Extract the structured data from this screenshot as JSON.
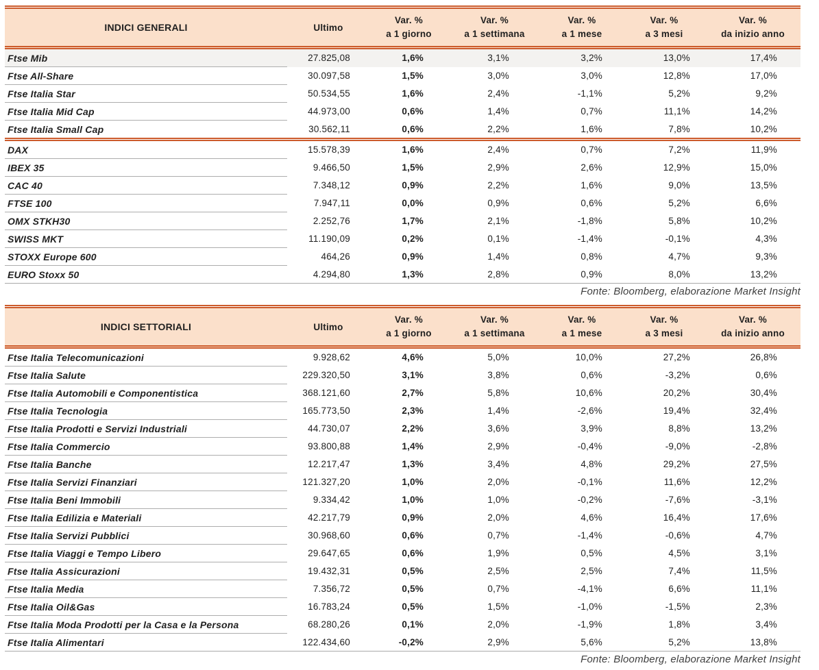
{
  "colors": {
    "header_bg": "#fbe0cb",
    "rule": "#cc5b2b",
    "row_line": "#adadad",
    "text": "#1f1f1f",
    "highlight": "#f3f2f0"
  },
  "tables": [
    {
      "headers": [
        {
          "label": "INDICI GENERALI"
        },
        {
          "label": "Ultimo"
        },
        {
          "line1": "Var. %",
          "line2": "a 1 giorno"
        },
        {
          "line1": "Var. %",
          "line2": "a 1 settimana"
        },
        {
          "line1": "Var. %",
          "line2": "a 1 mese"
        },
        {
          "line1": "Var. %",
          "line2": "a 3 mesi"
        },
        {
          "line1": "Var. %",
          "line2": "da inizio anno"
        }
      ],
      "rows": [
        {
          "name": "Ftse Mib",
          "ultimo": "27.825,08",
          "d1": "1,6%",
          "w1": "3,1%",
          "m1": "3,2%",
          "m3": "13,0%",
          "ytd": "17,4%",
          "highlight": true
        },
        {
          "name": "Ftse All-Share",
          "ultimo": "30.097,58",
          "d1": "1,5%",
          "w1": "3,0%",
          "m1": "3,0%",
          "m3": "12,8%",
          "ytd": "17,0%"
        },
        {
          "name": "Ftse Italia Star",
          "ultimo": "50.534,55",
          "d1": "1,6%",
          "w1": "2,4%",
          "m1": "-1,1%",
          "m3": "5,2%",
          "ytd": "9,2%"
        },
        {
          "name": "Ftse Italia Mid Cap",
          "ultimo": "44.973,00",
          "d1": "0,6%",
          "w1": "1,4%",
          "m1": "0,7%",
          "m3": "11,1%",
          "ytd": "14,2%"
        },
        {
          "name": "Ftse Italia Small Cap",
          "ultimo": "30.562,11",
          "d1": "0,6%",
          "w1": "2,2%",
          "m1": "1,6%",
          "m3": "7,8%",
          "ytd": "10,2%",
          "divider_after": true
        },
        {
          "name": "DAX",
          "ultimo": "15.578,39",
          "d1": "1,6%",
          "w1": "2,4%",
          "m1": "0,7%",
          "m3": "7,2%",
          "ytd": "11,9%"
        },
        {
          "name": "IBEX 35",
          "ultimo": "9.466,50",
          "d1": "1,5%",
          "w1": "2,9%",
          "m1": "2,6%",
          "m3": "12,9%",
          "ytd": "15,0%"
        },
        {
          "name": "CAC 40",
          "ultimo": "7.348,12",
          "d1": "0,9%",
          "w1": "2,2%",
          "m1": "1,6%",
          "m3": "9,0%",
          "ytd": "13,5%"
        },
        {
          "name": "FTSE 100",
          "ultimo": "7.947,11",
          "d1": "0,0%",
          "w1": "0,9%",
          "m1": "0,6%",
          "m3": "5,2%",
          "ytd": "6,6%"
        },
        {
          "name": "OMX STKH30",
          "ultimo": "2.252,76",
          "d1": "1,7%",
          "w1": "2,1%",
          "m1": "-1,8%",
          "m3": "5,8%",
          "ytd": "10,2%"
        },
        {
          "name": "SWISS MKT",
          "ultimo": "11.190,09",
          "d1": "0,2%",
          "w1": "0,1%",
          "m1": "-1,4%",
          "m3": "-0,1%",
          "ytd": "4,3%"
        },
        {
          "name": "STOXX Europe 600",
          "ultimo": "464,26",
          "d1": "0,9%",
          "w1": "1,4%",
          "m1": "0,8%",
          "m3": "4,7%",
          "ytd": "9,3%"
        },
        {
          "name": "EURO Stoxx 50",
          "ultimo": "4.294,80",
          "d1": "1,3%",
          "w1": "2,8%",
          "m1": "0,9%",
          "m3": "8,0%",
          "ytd": "13,2%"
        }
      ],
      "source_note": "Fonte: Bloomberg, elaborazione Market Insight"
    },
    {
      "headers": [
        {
          "label": "INDICI SETTORIALI"
        },
        {
          "label": "Ultimo"
        },
        {
          "line1": "Var. %",
          "line2": "a 1 giorno"
        },
        {
          "line1": "Var. %",
          "line2": "a 1 settimana"
        },
        {
          "line1": "Var. %",
          "line2": "a 1 mese"
        },
        {
          "line1": "Var. %",
          "line2": "a 3 mesi"
        },
        {
          "line1": "Var. %",
          "line2": "da inizio anno"
        }
      ],
      "rows": [
        {
          "name": "Ftse Italia Telecomunicazioni",
          "ultimo": "9.928,62",
          "d1": "4,6%",
          "w1": "5,0%",
          "m1": "10,0%",
          "m3": "27,2%",
          "ytd": "26,8%"
        },
        {
          "name": "Ftse Italia Salute",
          "ultimo": "229.320,50",
          "d1": "3,1%",
          "w1": "3,8%",
          "m1": "0,6%",
          "m3": "-3,2%",
          "ytd": "0,6%"
        },
        {
          "name": "Ftse Italia Automobili e Componentistica",
          "ultimo": "368.121,60",
          "d1": "2,7%",
          "w1": "5,8%",
          "m1": "10,6%",
          "m3": "20,2%",
          "ytd": "30,4%"
        },
        {
          "name": "Ftse Italia Tecnologia",
          "ultimo": "165.773,50",
          "d1": "2,3%",
          "w1": "1,4%",
          "m1": "-2,6%",
          "m3": "19,4%",
          "ytd": "32,4%"
        },
        {
          "name": "Ftse Italia Prodotti e Servizi Industriali",
          "ultimo": "44.730,07",
          "d1": "2,2%",
          "w1": "3,6%",
          "m1": "3,9%",
          "m3": "8,8%",
          "ytd": "13,2%"
        },
        {
          "name": "Ftse Italia Commercio",
          "ultimo": "93.800,88",
          "d1": "1,4%",
          "w1": "2,9%",
          "m1": "-0,4%",
          "m3": "-9,0%",
          "ytd": "-2,8%"
        },
        {
          "name": "Ftse Italia Banche",
          "ultimo": "12.217,47",
          "d1": "1,3%",
          "w1": "3,4%",
          "m1": "4,8%",
          "m3": "29,2%",
          "ytd": "27,5%"
        },
        {
          "name": "Ftse Italia Servizi Finanziari",
          "ultimo": "121.327,20",
          "d1": "1,0%",
          "w1": "2,0%",
          "m1": "-0,1%",
          "m3": "11,6%",
          "ytd": "12,2%"
        },
        {
          "name": "Ftse Italia Beni Immobili",
          "ultimo": "9.334,42",
          "d1": "1,0%",
          "w1": "1,0%",
          "m1": "-0,2%",
          "m3": "-7,6%",
          "ytd": "-3,1%"
        },
        {
          "name": "Ftse Italia Edilizia e Materiali",
          "ultimo": "42.217,79",
          "d1": "0,9%",
          "w1": "2,0%",
          "m1": "4,6%",
          "m3": "16,4%",
          "ytd": "17,6%"
        },
        {
          "name": "Ftse Italia Servizi Pubblici",
          "ultimo": "30.968,60",
          "d1": "0,6%",
          "w1": "0,7%",
          "m1": "-1,4%",
          "m3": "-0,6%",
          "ytd": "4,7%"
        },
        {
          "name": "Ftse Italia Viaggi e Tempo Libero",
          "ultimo": "29.647,65",
          "d1": "0,6%",
          "w1": "1,9%",
          "m1": "0,5%",
          "m3": "4,5%",
          "ytd": "3,1%"
        },
        {
          "name": "Ftse Italia Assicurazioni",
          "ultimo": "19.432,31",
          "d1": "0,5%",
          "w1": "2,5%",
          "m1": "2,5%",
          "m3": "7,4%",
          "ytd": "11,5%"
        },
        {
          "name": "Ftse Italia Media",
          "ultimo": "7.356,72",
          "d1": "0,5%",
          "w1": "0,7%",
          "m1": "-4,1%",
          "m3": "6,6%",
          "ytd": "11,1%"
        },
        {
          "name": "Ftse Italia Oil&Gas",
          "ultimo": "16.783,24",
          "d1": "0,5%",
          "w1": "1,5%",
          "m1": "-1,0%",
          "m3": "-1,5%",
          "ytd": "2,3%"
        },
        {
          "name": "Ftse Italia Moda Prodotti per la Casa e la Persona",
          "ultimo": "68.280,26",
          "d1": "0,1%",
          "w1": "2,0%",
          "m1": "-1,9%",
          "m3": "1,8%",
          "ytd": "3,4%"
        },
        {
          "name": "Ftse Italia Alimentari",
          "ultimo": "122.434,60",
          "d1": "-0,2%",
          "w1": "2,9%",
          "m1": "5,6%",
          "m3": "5,2%",
          "ytd": "13,8%"
        }
      ],
      "source_note": "Fonte: Bloomberg, elaborazione Market Insight"
    }
  ]
}
